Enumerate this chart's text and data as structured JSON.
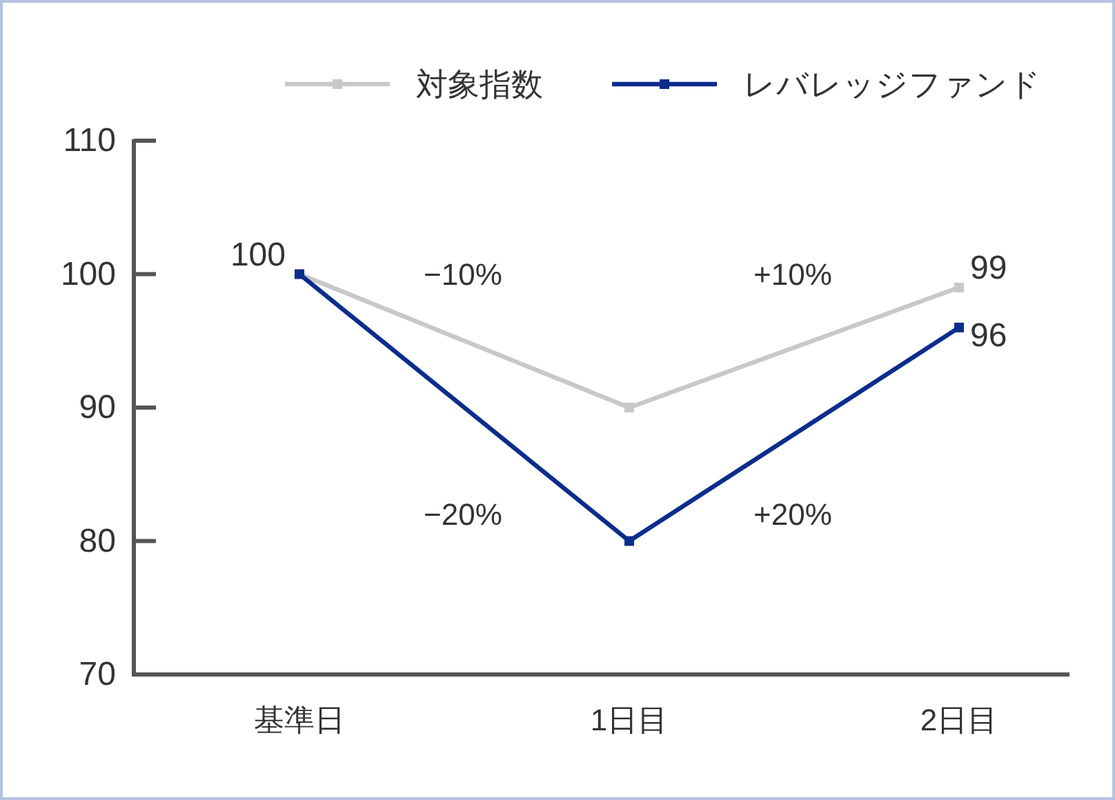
{
  "chart_data": {
    "type": "line",
    "categories": [
      "基準日",
      "1日目",
      "2日目"
    ],
    "series": [
      {
        "name": "対象指数",
        "color": "#c8c8c8",
        "values": [
          100,
          90,
          99
        ],
        "value_labels": [
          "100",
          null,
          "99"
        ]
      },
      {
        "name": "レバレッジファンド",
        "color": "#0a2d8c",
        "values": [
          100,
          80,
          96
        ],
        "value_labels": [
          null,
          null,
          "96"
        ]
      }
    ],
    "ylim": [
      70,
      110
    ],
    "yticks": [
      70,
      80,
      90,
      100,
      110
    ],
    "annotations": [
      "−10%",
      "+10%",
      "−20%",
      "+20%"
    ],
    "marker": "square",
    "line_style": "solid",
    "legend": "top",
    "grid": false
  }
}
